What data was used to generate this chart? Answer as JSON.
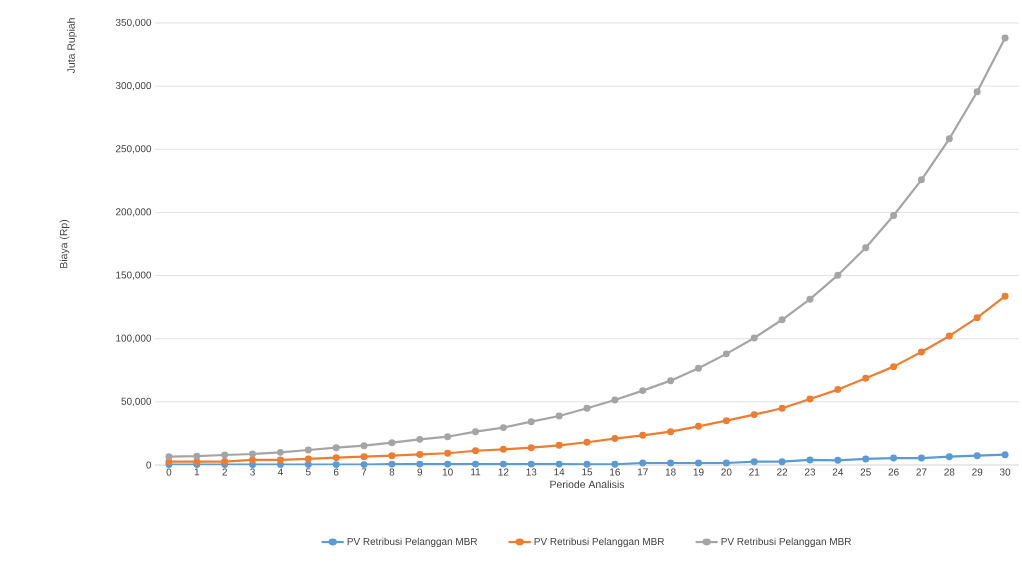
{
  "chart_data": {
    "type": "line",
    "ylabel": "Biaya (Rp)",
    "xlabel": "Periode Analisis",
    "annotations": [
      "Juta Rupiah"
    ],
    "categories": [
      "0",
      "1",
      "2",
      "3",
      "4",
      "5",
      "6",
      "7",
      "8",
      "9",
      "10",
      "11",
      "12",
      "13",
      "14",
      "15",
      "16",
      "17",
      "18",
      "19",
      "20",
      "21",
      "22",
      "23",
      "24",
      "25",
      "26",
      "27",
      "28",
      "29",
      "30"
    ],
    "series": [
      {
        "name": "PV Retribusi Pelanggan MBR",
        "color": "#5b9bd5",
        "values": [
          300,
          300,
          300,
          300,
          300,
          300,
          300,
          300,
          700,
          700,
          700,
          700,
          700,
          700,
          700,
          600,
          600,
          1600,
          1600,
          1600,
          1600,
          2600,
          2600,
          4000,
          3700,
          4800,
          5500,
          5500,
          6600,
          7400,
          8200
        ]
      },
      {
        "name": "PV Retribusi Pelanggan MBR",
        "color": "#ed7d31",
        "values": [
          2600,
          2600,
          2700,
          4000,
          4000,
          4800,
          5800,
          6600,
          7400,
          8400,
          9300,
          11300,
          12400,
          13700,
          15600,
          18000,
          20900,
          23500,
          26400,
          30600,
          35100,
          39900,
          44900,
          52300,
          59700,
          68700,
          77900,
          89500,
          102200,
          116700,
          133700
        ]
      },
      {
        "name": "PV Retribusi Pelanggan MBR",
        "color": "#a5a5a5",
        "values": [
          6600,
          7000,
          7900,
          8700,
          10000,
          11900,
          13700,
          15300,
          17700,
          20300,
          22400,
          26400,
          29600,
          34300,
          38800,
          44900,
          51500,
          58900,
          66800,
          76600,
          88000,
          100600,
          115000,
          131300,
          150300,
          172000,
          197600,
          225800,
          258300,
          295600,
          338100
        ]
      }
    ],
    "ylim": [
      0,
      350000
    ],
    "yticks": [
      {
        "value": 0,
        "label": "0"
      },
      {
        "value": 50000,
        "label": "50,000"
      },
      {
        "value": 100000,
        "label": "100,000"
      },
      {
        "value": 150000,
        "label": "150,000"
      },
      {
        "value": 200000,
        "label": "200,000"
      },
      {
        "value": 250000,
        "label": "250,000"
      },
      {
        "value": 300000,
        "label": "300,000"
      },
      {
        "value": 350000,
        "label": "350,000"
      }
    ],
    "grid": "y",
    "legend": "bottom",
    "marker": "circle",
    "line_style": "solid"
  }
}
